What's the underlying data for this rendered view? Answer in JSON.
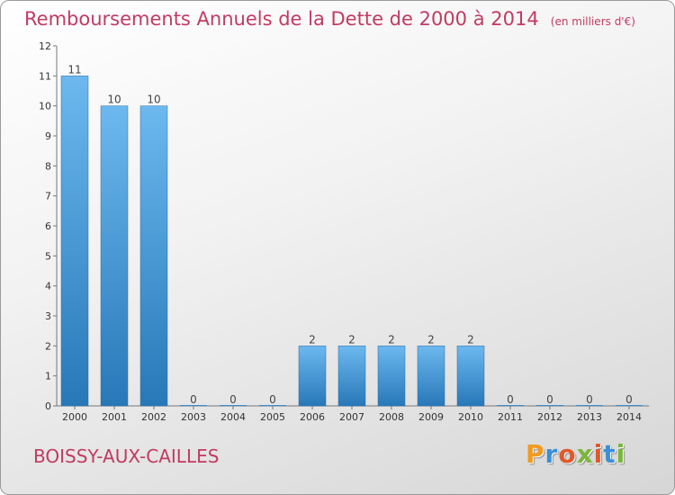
{
  "chart_data": {
    "type": "bar",
    "title": "Remboursements Annuels de la Dette de 2000 à 2014",
    "subtitle": "(en milliers d'€)",
    "categories": [
      "2000",
      "2001",
      "2002",
      "2003",
      "2004",
      "2005",
      "2006",
      "2007",
      "2008",
      "2009",
      "2010",
      "2011",
      "2012",
      "2013",
      "2014"
    ],
    "values": [
      11,
      10,
      10,
      0,
      0,
      0,
      2,
      2,
      2,
      2,
      2,
      0,
      0,
      0,
      0
    ],
    "ylim": [
      0,
      12
    ],
    "yticks": [
      "0",
      "1",
      "2",
      "3",
      "4",
      "5",
      "6",
      "7",
      "8",
      "9",
      "10",
      "11",
      "12"
    ],
    "grid": false,
    "colors": {
      "bar_top": "#6cb8ef",
      "bar_bottom": "#2878b8",
      "title": "#c23a63"
    }
  },
  "location": "BOISSY-AUX-CAILLES",
  "brand": {
    "letters": [
      "P",
      "r",
      "o",
      "x",
      "i",
      "t",
      "i"
    ],
    "colors": [
      "#f29a1e",
      "#3a8fd6",
      "#e0592a",
      "#7ab63a",
      "#e0592a",
      "#3a8fd6",
      "#7ab63a"
    ]
  }
}
